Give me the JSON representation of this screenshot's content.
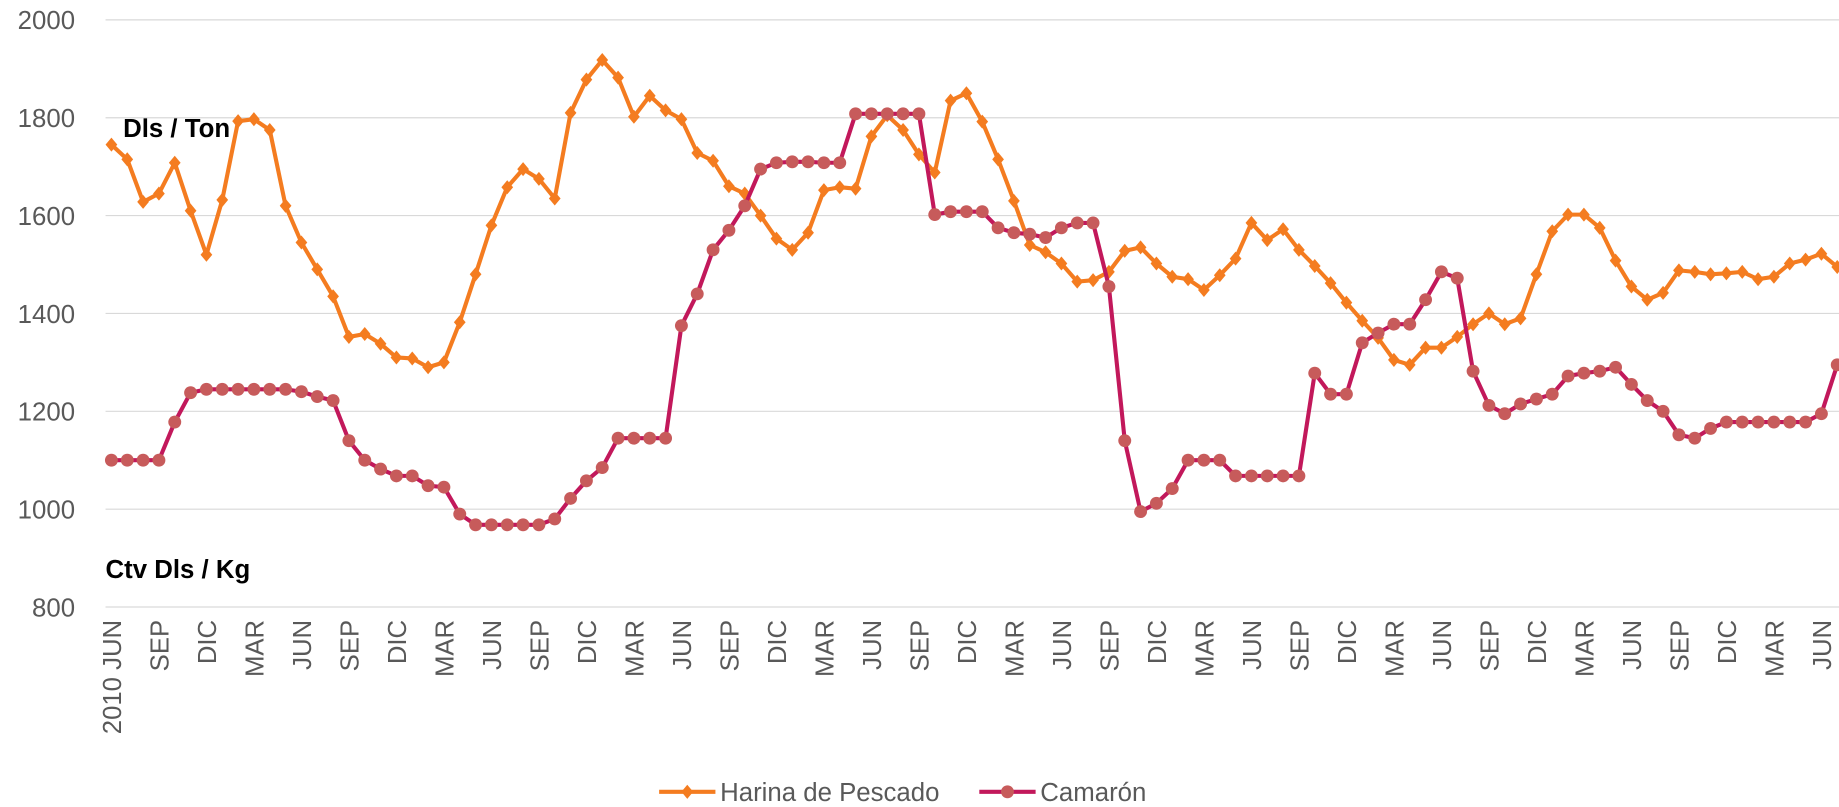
{
  "chart_data": {
    "type": "line",
    "annotations": [
      "Dls / Ton",
      "Ctv Dls / Kg"
    ],
    "categories": [
      "2010 JUN",
      null,
      null,
      "SEP",
      null,
      null,
      "DIC",
      null,
      null,
      "MAR",
      null,
      null,
      "JUN",
      null,
      null,
      "SEP",
      null,
      null,
      "DIC",
      null,
      null,
      "MAR",
      null,
      null,
      "JUN",
      null,
      null,
      "SEP",
      null,
      null,
      "DIC",
      null,
      null,
      "MAR",
      null,
      null,
      "JUN",
      null,
      null,
      "SEP",
      null,
      null,
      "DIC",
      null,
      null,
      "MAR",
      null,
      null,
      "JUN",
      null,
      null,
      "SEP",
      null,
      null,
      "DIC",
      null,
      null,
      "MAR",
      null,
      null,
      "JUN",
      null,
      null,
      "SEP",
      null,
      null,
      "DIC",
      null,
      null,
      "MAR",
      null,
      null,
      "JUN",
      null,
      null,
      "SEP",
      null,
      null,
      "DIC",
      null,
      null,
      "MAR",
      null,
      null,
      "JUN",
      null,
      null,
      "SEP",
      null,
      null,
      "DIC",
      null,
      null,
      "MAR",
      null,
      null,
      "JUN",
      null,
      null,
      "SEP",
      null,
      null,
      "DIC",
      null,
      null,
      "MAR",
      null,
      null,
      "JUN",
      null
    ],
    "series": [
      {
        "name": "Harina de Pescado",
        "color": "#f47c20",
        "marker": "diamond",
        "marker_color": "#f47c20",
        "values": [
          1745,
          1715,
          1628,
          1645,
          1708,
          1610,
          1520,
          1632,
          1793,
          1797,
          1775,
          1620,
          1545,
          1490,
          1435,
          1352,
          1358,
          1338,
          1310,
          1308,
          1290,
          1300,
          1382,
          1480,
          1580,
          1658,
          1695,
          1675,
          1635,
          1810,
          1878,
          1918,
          1882,
          1802,
          1845,
          1815,
          1797,
          1728,
          1712,
          1660,
          1645,
          1600,
          1553,
          1530,
          1565,
          1652,
          1658,
          1655,
          1762,
          1805,
          1775,
          1725,
          1688,
          1835,
          1850,
          1792,
          1715,
          1630,
          1540,
          1525,
          1502,
          1465,
          1468,
          1485,
          1528,
          1535,
          1502,
          1475,
          1470,
          1448,
          1478,
          1512,
          1585,
          1550,
          1572,
          1530,
          1497,
          1462,
          1422,
          1385,
          1350,
          1305,
          1295,
          1330,
          1330,
          1352,
          1378,
          1400,
          1378,
          1390,
          1480,
          1568,
          1602,
          1602,
          1575,
          1508,
          1455,
          1428,
          1442,
          1488,
          1485,
          1480,
          1482,
          1485,
          1470,
          1475,
          1502,
          1510,
          1522,
          1495
        ]
      },
      {
        "name": "Camarón",
        "color": "#c2185b",
        "marker": "circle",
        "marker_color": "#c75b5b",
        "values": [
          1100,
          1100,
          1100,
          1100,
          1178,
          1238,
          1245,
          1245,
          1245,
          1245,
          1245,
          1245,
          1240,
          1230,
          1222,
          1140,
          1100,
          1082,
          1068,
          1068,
          1048,
          1045,
          990,
          968,
          968,
          968,
          968,
          968,
          980,
          1022,
          1058,
          1085,
          1145,
          1145,
          1145,
          1145,
          1375,
          1440,
          1530,
          1570,
          1620,
          1695,
          1708,
          1710,
          1710,
          1708,
          1708,
          1808,
          1808,
          1808,
          1808,
          1808,
          1602,
          1608,
          1608,
          1608,
          1575,
          1565,
          1562,
          1555,
          1575,
          1585,
          1585,
          1455,
          1140,
          995,
          1012,
          1042,
          1100,
          1100,
          1100,
          1068,
          1068,
          1068,
          1068,
          1068,
          1278,
          1235,
          1235,
          1340,
          1360,
          1378,
          1378,
          1428,
          1485,
          1472,
          1282,
          1212,
          1195,
          1215,
          1225,
          1235,
          1272,
          1278,
          1282,
          1290,
          1255,
          1222,
          1200,
          1152,
          1145,
          1165,
          1178,
          1178,
          1178,
          1178,
          1178,
          1178,
          1195,
          1295
        ]
      }
    ],
    "ylim": [
      800,
      2000
    ],
    "yticks": [
      800,
      1000,
      1200,
      1400,
      1600,
      1800,
      2000
    ],
    "grid": true,
    "legend": "bottom"
  }
}
